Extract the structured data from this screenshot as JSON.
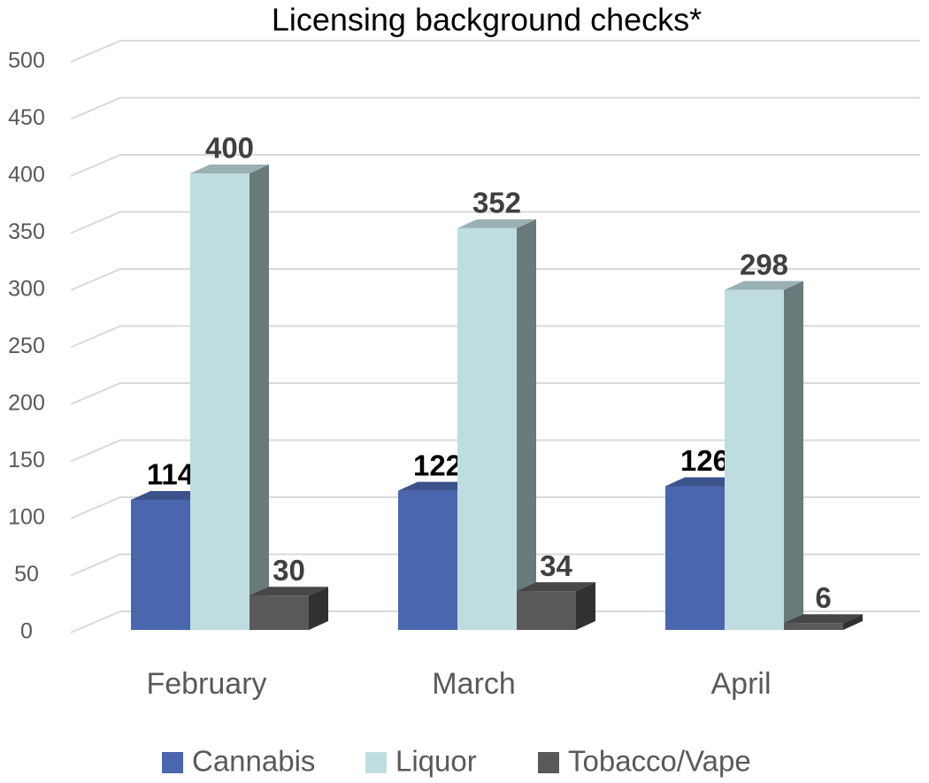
{
  "chart_data": {
    "type": "bar3d",
    "title": "Licensing background checks*",
    "categories": [
      "February",
      "March",
      "April"
    ],
    "series": [
      {
        "name": "Cannabis",
        "color": "#4a66ae",
        "values": [
          114,
          122,
          126
        ]
      },
      {
        "name": "Liquor",
        "color": "#bfdde0",
        "values": [
          400,
          352,
          298
        ]
      },
      {
        "name": "Tobacco/Vape",
        "color": "#595959",
        "values": [
          30,
          34,
          6
        ]
      }
    ],
    "ylim": [
      0,
      500
    ],
    "yticks": [
      0,
      50,
      100,
      150,
      200,
      250,
      300,
      350,
      400,
      450,
      500
    ],
    "grid": true,
    "legend": "bottom"
  }
}
